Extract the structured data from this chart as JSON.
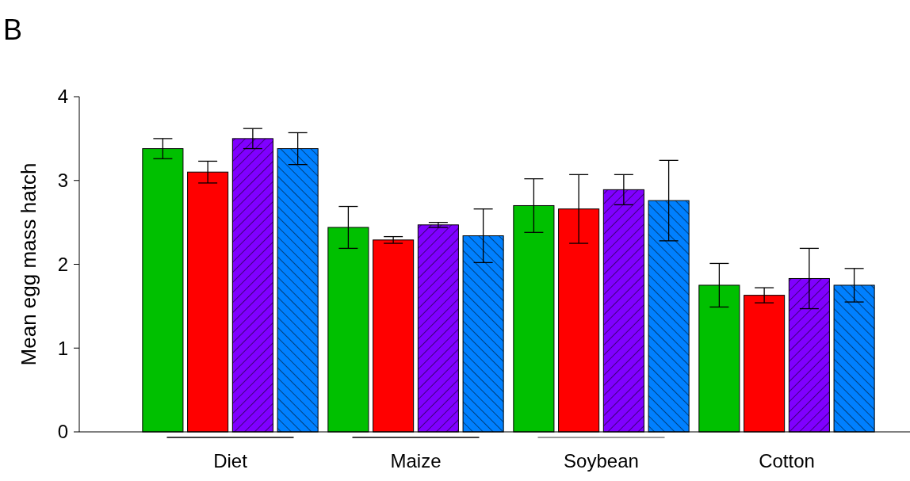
{
  "chart_data": {
    "type": "bar",
    "title": "B",
    "ylabel": "Mean egg mass hatch",
    "categories": [
      "Diet",
      "Maize",
      "Soybean",
      "Cotton"
    ],
    "series": [
      {
        "color": "#00c000",
        "values": [
          3.38,
          2.44,
          2.7,
          1.75
        ],
        "errors": [
          0.12,
          0.25,
          0.32,
          0.26
        ]
      },
      {
        "color": "#ff0000",
        "values": [
          3.1,
          2.29,
          2.66,
          1.63
        ],
        "errors": [
          0.13,
          0.04,
          0.41,
          0.09
        ]
      },
      {
        "color": "#8000ff",
        "values": [
          3.5,
          2.47,
          2.89,
          1.83
        ],
        "errors": [
          0.12,
          0.03,
          0.18,
          0.36
        ]
      },
      {
        "color": "#0080ff",
        "values": [
          3.38,
          2.34,
          2.76,
          1.75
        ],
        "errors": [
          0.19,
          0.32,
          0.48,
          0.2
        ]
      }
    ],
    "ylim": [
      0,
      4
    ],
    "yticks": [
      0,
      1,
      2,
      3,
      4
    ],
    "grid": false
  }
}
